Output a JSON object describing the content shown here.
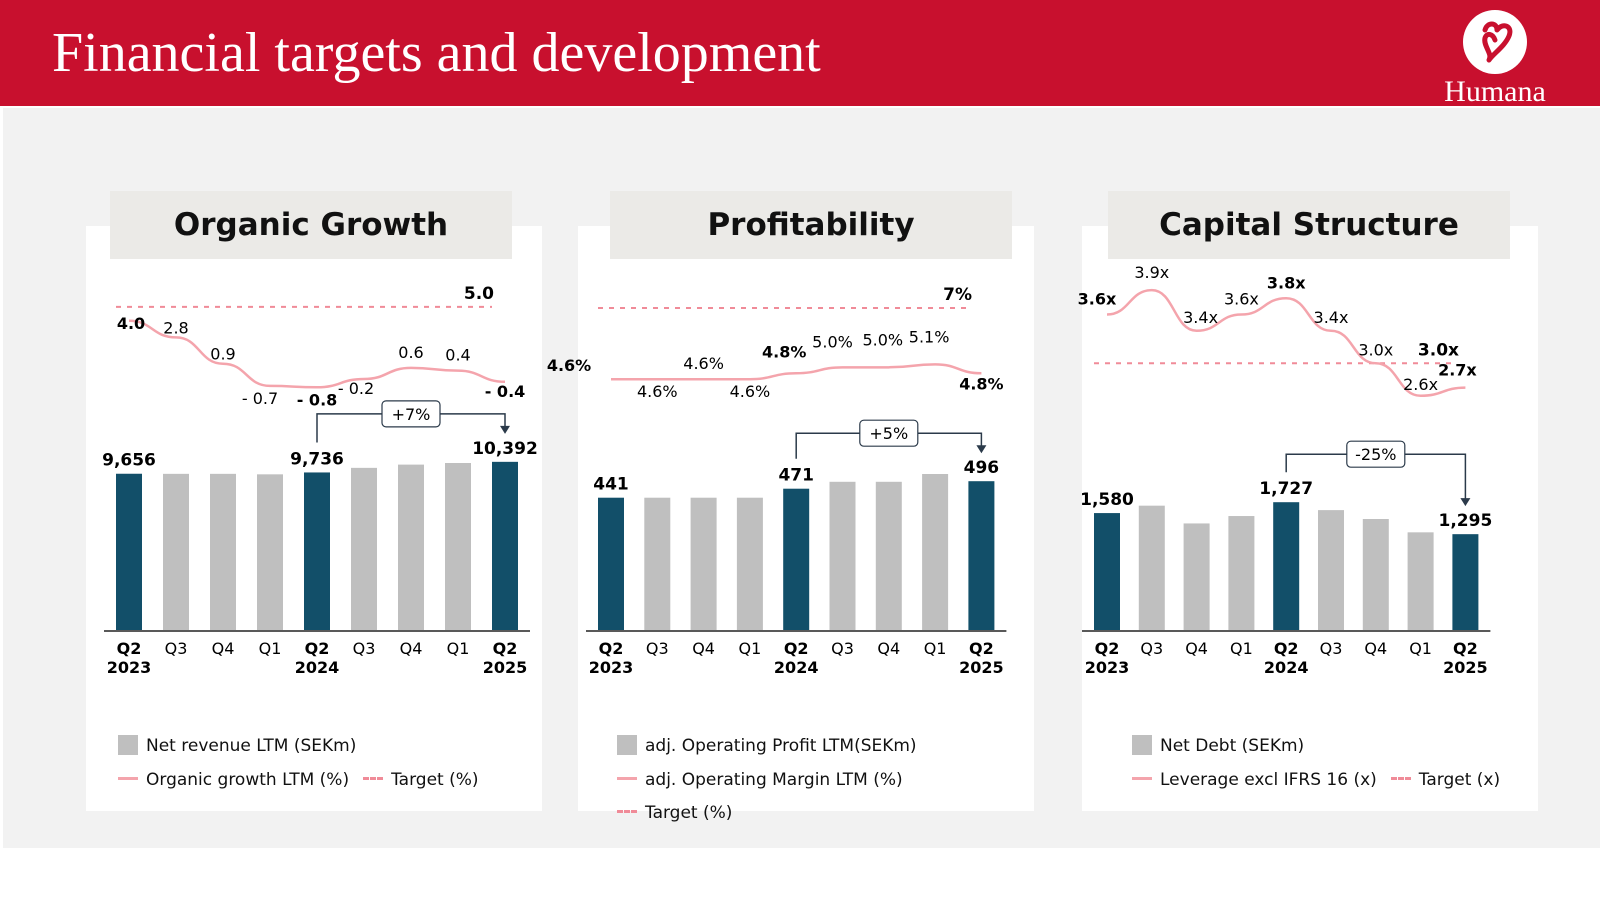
{
  "title": "Financial targets and development",
  "logo": {
    "name": "Humana"
  },
  "colors": {
    "brand_red": "#c8102e",
    "navy": "#124f69",
    "grey": "#bfbfbf",
    "pink": "#f4a4ac",
    "target": "#f08b98"
  },
  "panels": [
    {
      "title": "Organic Growth",
      "legend": {
        "bars": "Net revenue LTM (SEKm)",
        "line": "Organic growth LTM (%)",
        "target": "Target (%)"
      }
    },
    {
      "title": "Profitability",
      "legend": {
        "bars": "adj. Operating Profit LTM(SEKm)",
        "line": "adj. Operating Margin LTM (%)",
        "target": "Target (%)"
      }
    },
    {
      "title": "Capital Structure",
      "legend": {
        "bars": "Net Debt (SEKm)",
        "line": "Leverage excl IFRS 16 (x)",
        "target": "Target (x)"
      }
    }
  ],
  "chart_data": [
    {
      "type": "bar",
      "title": "Organic Growth",
      "categories": [
        "Q2 2023",
        "Q3",
        "Q4",
        "Q1",
        "Q2 2024",
        "Q3",
        "Q4",
        "Q1",
        "Q2 2025"
      ],
      "x_labels": [
        [
          "Q2",
          "2023"
        ],
        [
          "Q3",
          ""
        ],
        [
          "Q4",
          ""
        ],
        [
          "Q1",
          ""
        ],
        [
          "Q2",
          "2024"
        ],
        [
          "Q3",
          ""
        ],
        [
          "Q4",
          ""
        ],
        [
          "Q1",
          ""
        ],
        [
          "Q2",
          "2025"
        ]
      ],
      "highlight": [
        true,
        false,
        false,
        false,
        true,
        false,
        false,
        false,
        true
      ],
      "bars": {
        "name": "Net revenue LTM (SEKm)",
        "values": [
          9656,
          9650,
          9650,
          9620,
          9736,
          10020,
          10220,
          10320,
          10392
        ],
        "labels": [
          "9,656",
          "",
          "",
          "",
          "9,736",
          "",
          "",
          "",
          "10,392"
        ]
      },
      "line": {
        "name": "Organic growth LTM (%)",
        "values": [
          4.0,
          2.8,
          0.9,
          -0.7,
          -0.8,
          -0.2,
          0.6,
          0.4,
          -0.4
        ],
        "labels": [
          "4.0",
          "2.8",
          "0.9",
          "- 0.7",
          "- 0.8",
          "- 0.2",
          "0.6",
          "0.4",
          "- 0.4"
        ],
        "bold": [
          true,
          false,
          false,
          false,
          true,
          false,
          false,
          false,
          true
        ]
      },
      "target": {
        "value": 5.0,
        "label": "5.0"
      },
      "change": {
        "label": "+7%",
        "from": 4,
        "to": 8
      },
      "bar_range": [
        0,
        11000
      ],
      "line_range": [
        -1.5,
        5.5
      ]
    },
    {
      "type": "bar",
      "title": "Profitability",
      "categories": [
        "Q2 2023",
        "Q3",
        "Q4",
        "Q1",
        "Q2 2024",
        "Q3",
        "Q4",
        "Q1",
        "Q2 2025"
      ],
      "x_labels": [
        [
          "Q2",
          "2023"
        ],
        [
          "Q3",
          ""
        ],
        [
          "Q4",
          ""
        ],
        [
          "Q1",
          ""
        ],
        [
          "Q2",
          "2024"
        ],
        [
          "Q3",
          ""
        ],
        [
          "Q4",
          ""
        ],
        [
          "Q1",
          ""
        ],
        [
          "Q2",
          "2025"
        ]
      ],
      "highlight": [
        true,
        false,
        false,
        false,
        true,
        false,
        false,
        false,
        true
      ],
      "bars": {
        "name": "adj. Operating Profit LTM(SEKm)",
        "values": [
          441,
          441,
          441,
          441,
          471,
          494,
          494,
          520,
          496
        ],
        "labels": [
          "441",
          "",
          "",
          "",
          "471",
          "",
          "",
          "",
          "496"
        ]
      },
      "line": {
        "name": "adj. Operating Margin LTM (%)",
        "values": [
          4.6,
          4.6,
          4.6,
          4.6,
          4.8,
          5.0,
          5.0,
          5.1,
          4.8
        ],
        "labels": [
          "4.6%",
          "4.6%",
          "4.6%",
          "4.6%",
          "4.8%",
          "5.0%",
          "5.0%",
          "5.1%",
          "4.8%"
        ],
        "bold": [
          true,
          false,
          false,
          false,
          true,
          false,
          false,
          false,
          true
        ]
      },
      "target": {
        "value": 7.0,
        "label": "7%"
      },
      "change": {
        "label": "+5%",
        "from": 4,
        "to": 8
      },
      "bar_range": [
        0,
        560
      ],
      "line_range": [
        4.0,
        7.2
      ]
    },
    {
      "type": "bar",
      "title": "Capital Structure",
      "categories": [
        "Q2 2023",
        "Q3",
        "Q4",
        "Q1",
        "Q2 2024",
        "Q3",
        "Q4",
        "Q1",
        "Q2 2025"
      ],
      "x_labels": [
        [
          "Q2",
          "2023"
        ],
        [
          "Q3",
          ""
        ],
        [
          "Q4",
          ""
        ],
        [
          "Q1",
          ""
        ],
        [
          "Q2",
          "2024"
        ],
        [
          "Q3",
          ""
        ],
        [
          "Q4",
          ""
        ],
        [
          "Q1",
          ""
        ],
        [
          "Q2",
          "2025"
        ]
      ],
      "highlight": [
        true,
        false,
        false,
        false,
        true,
        false,
        false,
        false,
        true
      ],
      "bars": {
        "name": "Net Debt (SEKm)",
        "values": [
          1580,
          1680,
          1440,
          1540,
          1727,
          1620,
          1500,
          1320,
          1295
        ],
        "labels": [
          "1,580",
          "",
          "",
          "",
          "1,727",
          "",
          "",
          "",
          "1,295"
        ]
      },
      "line": {
        "name": "Leverage excl IFRS 16 (x)",
        "values": [
          3.6,
          3.9,
          3.4,
          3.6,
          3.8,
          3.4,
          3.0,
          2.6,
          2.7
        ],
        "labels": [
          "3.6x",
          "3.9x",
          "3.4x",
          "3.6x",
          "3.8x",
          "3.4x",
          "3.0x",
          "2.6x",
          "2.7x"
        ],
        "bold": [
          true,
          false,
          false,
          false,
          true,
          false,
          false,
          false,
          true
        ]
      },
      "target": {
        "value": 3.0,
        "label": "3.0x"
      },
      "change": {
        "label": "-25%",
        "from": 4,
        "to": 8
      },
      "bar_range": [
        0,
        2000
      ],
      "line_range": [
        2.4,
        4.0
      ]
    }
  ]
}
